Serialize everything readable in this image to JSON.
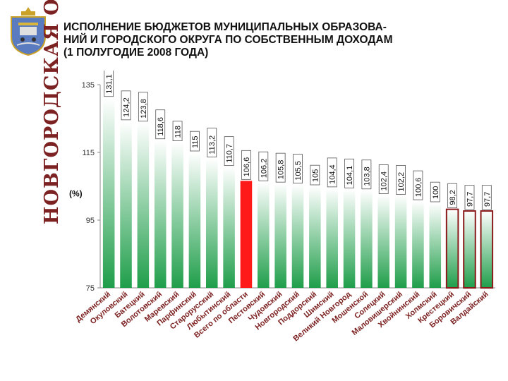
{
  "region": {
    "name": "НОВГОРОДСКАЯ ОБЛАСТЬ",
    "crest_icon": "novgorod-coat-of-arms"
  },
  "title_lines": [
    "ИСПОЛНЕНИЕ БЮДЖЕТОВ МУНИЦИПАЛЬНЫХ ОБРАЗОВА-",
    "НИЙ И ГОРОДСКОГО ОКРУГА ПО СОБСТВЕННЫМ ДОХОДАМ",
    "(1 ПОЛУГОДИЕ 2008 ГОДА)"
  ],
  "chart_data": {
    "type": "bar",
    "ylabel": "(%)",
    "ylim": [
      75,
      135
    ],
    "yticks": [
      75,
      95,
      115,
      135
    ],
    "categories": [
      "Демянский",
      "Окуловский",
      "Батецкий",
      "Волотовский",
      "Маревский",
      "Парфинский",
      "Старорусский",
      "Любытинский",
      "Всего по области",
      "Пестовский",
      "Чудовский",
      "Новгородский",
      "Поддорский",
      "Шимский",
      "Великий Новгород",
      "Мошенской",
      "Солецкий",
      "Маловишерский",
      "Хвойнинский",
      "Холмский",
      "Крестецкий",
      "Боровичский",
      "Валдайский"
    ],
    "values": [
      131.1,
      124.2,
      123.8,
      118.6,
      118,
      115,
      113.2,
      110.7,
      106.6,
      106.2,
      105.8,
      105.5,
      105,
      104.4,
      104.1,
      103.8,
      102.4,
      102.2,
      100.6,
      100,
      98.2,
      97.7,
      97.7
    ],
    "value_labels": [
      "131,1",
      "124,2",
      "123,8",
      "118,6",
      "118",
      "115",
      "113,2",
      "110,7",
      "106,6",
      "106,2",
      "105,8",
      "105,5",
      "105",
      "104,4",
      "104,1",
      "103,8",
      "102,4",
      "102,2",
      "100,6",
      "100",
      "98,2",
      "97,7",
      "97,7"
    ],
    "highlight": {
      "total_index": 8,
      "total_color": "#ff1a1a",
      "below_100_indices": [
        20,
        21,
        22
      ],
      "below_100_border": "#8b1a1a"
    },
    "bar_gradient": [
      "#ffffff",
      "#1f9e4a"
    ],
    "grid": false,
    "legend": "none"
  }
}
